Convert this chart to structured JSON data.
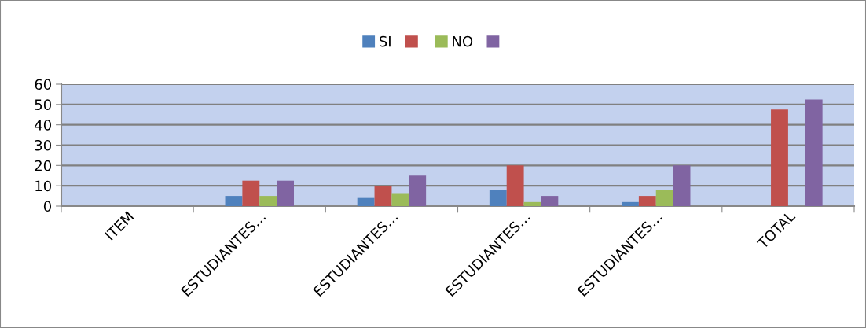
{
  "chart_data": {
    "type": "bar",
    "categories": [
      "ITEM",
      "ESTUDIANTES…",
      "ESTUDIANTES…",
      "ESTUDIANTES…",
      "ESTUDIANTES…",
      "TOTAL"
    ],
    "series": [
      {
        "name": "SI",
        "color": "#4f81bd",
        "values": [
          null,
          5,
          4,
          8,
          2,
          null
        ]
      },
      {
        "color": "#c0504d",
        "values": [
          null,
          12.5,
          10,
          20,
          5,
          47.5
        ]
      },
      {
        "name": "NO",
        "color": "#9bbb59",
        "values": [
          null,
          5,
          6,
          2,
          8,
          null
        ]
      },
      {
        "color": "#8064a2",
        "values": [
          null,
          12.5,
          15,
          5,
          20,
          52.5
        ]
      }
    ],
    "ylim": [
      0,
      60
    ],
    "yticks": [
      0,
      10,
      20,
      30,
      40,
      50,
      60
    ],
    "grid": "y",
    "legend": "top"
  }
}
